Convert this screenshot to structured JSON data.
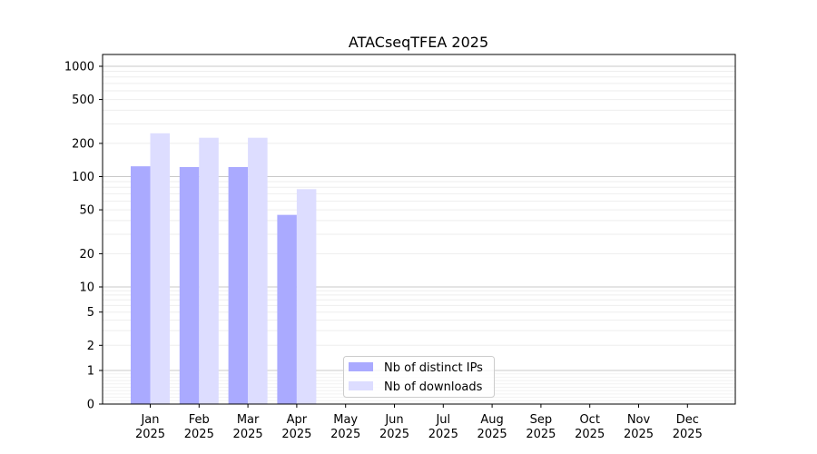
{
  "chart_data": {
    "type": "bar",
    "title": "ATACseqTFEA 2025",
    "xlabel": "",
    "ylabel": "",
    "yscale": "symlog",
    "ylim": [
      0,
      1300
    ],
    "yticks": [
      0,
      1,
      2,
      5,
      10,
      20,
      50,
      100,
      200,
      500,
      1000
    ],
    "grid": true,
    "legend_position": "bottom-center",
    "categories": [
      "Jan\n2025",
      "Feb\n2025",
      "Mar\n2025",
      "Apr\n2025",
      "May\n2025",
      "Jun\n2025",
      "Jul\n2025",
      "Aug\n2025",
      "Sep\n2025",
      "Oct\n2025",
      "Nov\n2025",
      "Dec\n2025"
    ],
    "series": [
      {
        "name": "Nb of distinct IPs",
        "color": "#aaaaff",
        "values": [
          124,
          122,
          122,
          45,
          0,
          0,
          0,
          0,
          0,
          0,
          0,
          0
        ]
      },
      {
        "name": "Nb of downloads",
        "color": "#ddddff",
        "values": [
          247,
          225,
          225,
          77,
          0,
          0,
          0,
          0,
          0,
          0,
          0,
          0
        ]
      }
    ]
  }
}
